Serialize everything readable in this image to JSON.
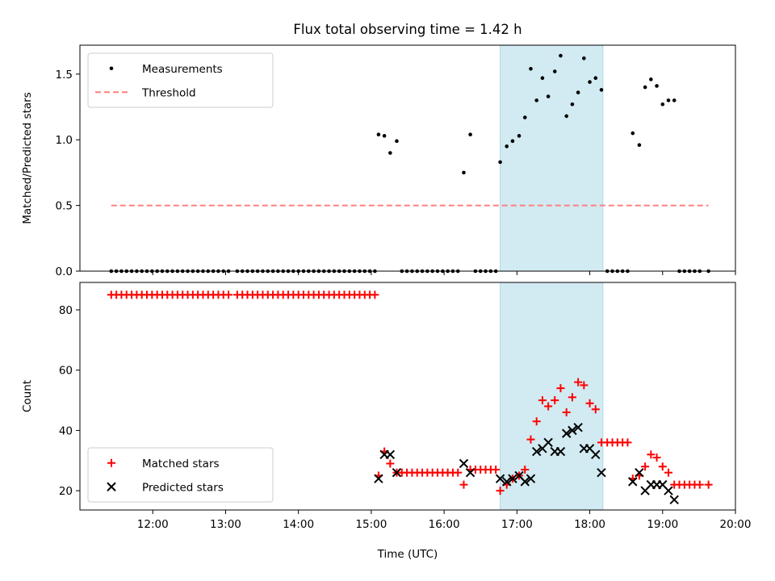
{
  "chart_data": [
    {
      "type": "scatter",
      "title": "Flux total observing time = 1.42 h",
      "xlabel": "",
      "ylabel": "Matched/Predicted stars",
      "x_unit": "hours UTC",
      "xlim": [
        11.0,
        20.0
      ],
      "ylim": [
        0.0,
        1.72
      ],
      "xticks": [
        12,
        13,
        14,
        15,
        16,
        17,
        18,
        19,
        20
      ],
      "xtick_labels": [
        "",
        "",
        "",
        "",
        "",
        "",
        "",
        "",
        ""
      ],
      "yticks": [
        0.0,
        0.5,
        1.0,
        1.5
      ],
      "ytick_labels": [
        "0.0",
        "0.5",
        "1.0",
        "1.5"
      ],
      "shaded_region": {
        "x0": 16.77,
        "x1": 18.18,
        "color": "#add8e6"
      },
      "legend": {
        "position": "upper left",
        "entries": [
          "Measurements",
          "Threshold"
        ]
      },
      "series": [
        {
          "name": "Measurements",
          "marker": "dot",
          "color": "#000000",
          "points": [
            [
              11.43,
              0
            ],
            [
              11.5,
              0
            ],
            [
              11.57,
              0
            ],
            [
              11.64,
              0
            ],
            [
              11.71,
              0
            ],
            [
              11.78,
              0
            ],
            [
              11.85,
              0
            ],
            [
              11.92,
              0
            ],
            [
              11.99,
              0
            ],
            [
              12.06,
              0
            ],
            [
              12.13,
              0
            ],
            [
              12.2,
              0
            ],
            [
              12.27,
              0
            ],
            [
              12.34,
              0
            ],
            [
              12.41,
              0
            ],
            [
              12.48,
              0
            ],
            [
              12.55,
              0
            ],
            [
              12.62,
              0
            ],
            [
              12.69,
              0
            ],
            [
              12.76,
              0
            ],
            [
              12.83,
              0
            ],
            [
              12.9,
              0
            ],
            [
              12.97,
              0
            ],
            [
              13.04,
              0
            ],
            [
              13.16,
              0
            ],
            [
              13.23,
              0
            ],
            [
              13.3,
              0
            ],
            [
              13.37,
              0
            ],
            [
              13.44,
              0
            ],
            [
              13.51,
              0
            ],
            [
              13.58,
              0
            ],
            [
              13.65,
              0
            ],
            [
              13.72,
              0
            ],
            [
              13.79,
              0
            ],
            [
              13.86,
              0
            ],
            [
              13.93,
              0
            ],
            [
              14.0,
              0
            ],
            [
              14.07,
              0
            ],
            [
              14.14,
              0
            ],
            [
              14.21,
              0
            ],
            [
              14.28,
              0
            ],
            [
              14.35,
              0
            ],
            [
              14.42,
              0
            ],
            [
              14.49,
              0
            ],
            [
              14.56,
              0
            ],
            [
              14.63,
              0
            ],
            [
              14.7,
              0
            ],
            [
              14.77,
              0
            ],
            [
              14.84,
              0
            ],
            [
              14.91,
              0
            ],
            [
              14.98,
              0
            ],
            [
              15.05,
              0
            ],
            [
              15.1,
              1.04
            ],
            [
              15.18,
              1.03
            ],
            [
              15.26,
              0.9
            ],
            [
              15.35,
              0.99
            ],
            [
              15.42,
              0
            ],
            [
              15.49,
              0
            ],
            [
              15.56,
              0
            ],
            [
              15.63,
              0
            ],
            [
              15.7,
              0
            ],
            [
              15.77,
              0
            ],
            [
              15.84,
              0
            ],
            [
              15.91,
              0
            ],
            [
              15.98,
              0
            ],
            [
              16.05,
              0
            ],
            [
              16.12,
              0
            ],
            [
              16.19,
              0
            ],
            [
              16.27,
              0.75
            ],
            [
              16.36,
              1.04
            ],
            [
              16.43,
              0
            ],
            [
              16.5,
              0
            ],
            [
              16.57,
              0
            ],
            [
              16.64,
              0
            ],
            [
              16.71,
              0
            ],
            [
              16.77,
              0.83
            ],
            [
              16.86,
              0.95
            ],
            [
              16.94,
              0.99
            ],
            [
              17.03,
              1.03
            ],
            [
              17.11,
              1.17
            ],
            [
              17.19,
              1.54
            ],
            [
              17.27,
              1.3
            ],
            [
              17.35,
              1.47
            ],
            [
              17.43,
              1.33
            ],
            [
              17.52,
              1.52
            ],
            [
              17.6,
              1.64
            ],
            [
              17.68,
              1.18
            ],
            [
              17.76,
              1.27
            ],
            [
              17.84,
              1.36
            ],
            [
              17.92,
              1.62
            ],
            [
              18.0,
              1.44
            ],
            [
              18.08,
              1.47
            ],
            [
              18.16,
              1.38
            ],
            [
              18.24,
              0
            ],
            [
              18.31,
              0
            ],
            [
              18.38,
              0
            ],
            [
              18.45,
              0
            ],
            [
              18.52,
              0
            ],
            [
              18.59,
              1.05
            ],
            [
              18.68,
              0.96
            ],
            [
              18.76,
              1.4
            ],
            [
              18.84,
              1.46
            ],
            [
              18.92,
              1.41
            ],
            [
              19.0,
              1.27
            ],
            [
              19.08,
              1.3
            ],
            [
              19.16,
              1.3
            ],
            [
              19.23,
              0
            ],
            [
              19.3,
              0
            ],
            [
              19.37,
              0
            ],
            [
              19.44,
              0
            ],
            [
              19.51,
              0
            ],
            [
              19.63,
              0
            ]
          ]
        },
        {
          "name": "Threshold",
          "marker": "dashed-line",
          "color": "#ff7f7f",
          "points": [
            [
              11.43,
              0.5
            ],
            [
              19.63,
              0.5
            ]
          ]
        }
      ]
    },
    {
      "type": "scatter",
      "title": "",
      "xlabel": "Time (UTC)",
      "ylabel": "Count",
      "x_unit": "hours UTC",
      "xlim": [
        11.0,
        20.0
      ],
      "ylim": [
        13.6,
        89.1
      ],
      "xticks": [
        12,
        13,
        14,
        15,
        16,
        17,
        18,
        19,
        20
      ],
      "xtick_labels": [
        "12:00",
        "13:00",
        "14:00",
        "15:00",
        "16:00",
        "17:00",
        "18:00",
        "19:00",
        "20:00"
      ],
      "yticks": [
        20,
        40,
        60,
        80
      ],
      "ytick_labels": [
        "20",
        "40",
        "60",
        "80"
      ],
      "shaded_region": {
        "x0": 16.77,
        "x1": 18.18,
        "color": "#add8e6"
      },
      "legend": {
        "position": "lower left",
        "entries": [
          "Matched stars",
          "Predicted stars"
        ]
      },
      "series": [
        {
          "name": "Matched stars",
          "marker": "plus",
          "color": "#ff0000",
          "points": [
            [
              11.43,
              85
            ],
            [
              11.5,
              85
            ],
            [
              11.57,
              85
            ],
            [
              11.64,
              85
            ],
            [
              11.71,
              85
            ],
            [
              11.78,
              85
            ],
            [
              11.85,
              85
            ],
            [
              11.92,
              85
            ],
            [
              11.99,
              85
            ],
            [
              12.06,
              85
            ],
            [
              12.13,
              85
            ],
            [
              12.2,
              85
            ],
            [
              12.27,
              85
            ],
            [
              12.34,
              85
            ],
            [
              12.41,
              85
            ],
            [
              12.48,
              85
            ],
            [
              12.55,
              85
            ],
            [
              12.62,
              85
            ],
            [
              12.69,
              85
            ],
            [
              12.76,
              85
            ],
            [
              12.83,
              85
            ],
            [
              12.9,
              85
            ],
            [
              12.97,
              85
            ],
            [
              13.04,
              85
            ],
            [
              13.16,
              85
            ],
            [
              13.23,
              85
            ],
            [
              13.3,
              85
            ],
            [
              13.37,
              85
            ],
            [
              13.44,
              85
            ],
            [
              13.51,
              85
            ],
            [
              13.58,
              85
            ],
            [
              13.65,
              85
            ],
            [
              13.72,
              85
            ],
            [
              13.79,
              85
            ],
            [
              13.86,
              85
            ],
            [
              13.93,
              85
            ],
            [
              14.0,
              85
            ],
            [
              14.07,
              85
            ],
            [
              14.14,
              85
            ],
            [
              14.21,
              85
            ],
            [
              14.28,
              85
            ],
            [
              14.35,
              85
            ],
            [
              14.42,
              85
            ],
            [
              14.49,
              85
            ],
            [
              14.56,
              85
            ],
            [
              14.63,
              85
            ],
            [
              14.7,
              85
            ],
            [
              14.77,
              85
            ],
            [
              14.84,
              85
            ],
            [
              14.91,
              85
            ],
            [
              14.98,
              85
            ],
            [
              15.05,
              85
            ],
            [
              15.1,
              25
            ],
            [
              15.18,
              33
            ],
            [
              15.26,
              29
            ],
            [
              15.35,
              26
            ],
            [
              15.42,
              26
            ],
            [
              15.49,
              26
            ],
            [
              15.56,
              26
            ],
            [
              15.63,
              26
            ],
            [
              15.7,
              26
            ],
            [
              15.77,
              26
            ],
            [
              15.84,
              26
            ],
            [
              15.91,
              26
            ],
            [
              15.98,
              26
            ],
            [
              16.05,
              26
            ],
            [
              16.12,
              26
            ],
            [
              16.19,
              26
            ],
            [
              16.27,
              22
            ],
            [
              16.36,
              27
            ],
            [
              16.43,
              27
            ],
            [
              16.5,
              27
            ],
            [
              16.57,
              27
            ],
            [
              16.64,
              27
            ],
            [
              16.71,
              27
            ],
            [
              16.77,
              20
            ],
            [
              16.86,
              22
            ],
            [
              16.94,
              24
            ],
            [
              17.03,
              25
            ],
            [
              17.11,
              27
            ],
            [
              17.19,
              37
            ],
            [
              17.27,
              43
            ],
            [
              17.35,
              50
            ],
            [
              17.43,
              48
            ],
            [
              17.52,
              50
            ],
            [
              17.6,
              54
            ],
            [
              17.68,
              46
            ],
            [
              17.76,
              51
            ],
            [
              17.84,
              56
            ],
            [
              17.92,
              55
            ],
            [
              18.0,
              49
            ],
            [
              18.08,
              47
            ],
            [
              18.16,
              36
            ],
            [
              18.24,
              36
            ],
            [
              18.31,
              36
            ],
            [
              18.38,
              36
            ],
            [
              18.45,
              36
            ],
            [
              18.52,
              36
            ],
            [
              18.59,
              24
            ],
            [
              18.68,
              25
            ],
            [
              18.76,
              28
            ],
            [
              18.84,
              32
            ],
            [
              18.92,
              31
            ],
            [
              19.0,
              28
            ],
            [
              19.08,
              26
            ],
            [
              19.16,
              22
            ],
            [
              19.23,
              22
            ],
            [
              19.3,
              22
            ],
            [
              19.37,
              22
            ],
            [
              19.44,
              22
            ],
            [
              19.51,
              22
            ],
            [
              19.63,
              22
            ]
          ]
        },
        {
          "name": "Predicted stars",
          "marker": "x",
          "color": "#000000",
          "points": [
            [
              15.1,
              24
            ],
            [
              15.18,
              32
            ],
            [
              15.26,
              32
            ],
            [
              15.35,
              26
            ],
            [
              16.27,
              29
            ],
            [
              16.36,
              26
            ],
            [
              16.77,
              24
            ],
            [
              16.86,
              23
            ],
            [
              16.94,
              24
            ],
            [
              17.03,
              25
            ],
            [
              17.11,
              23
            ],
            [
              17.19,
              24
            ],
            [
              17.27,
              33
            ],
            [
              17.35,
              34
            ],
            [
              17.43,
              36
            ],
            [
              17.52,
              33
            ],
            [
              17.6,
              33
            ],
            [
              17.68,
              39
            ],
            [
              17.76,
              40
            ],
            [
              17.84,
              41
            ],
            [
              17.92,
              34
            ],
            [
              18.0,
              34
            ],
            [
              18.08,
              32
            ],
            [
              18.16,
              26
            ],
            [
              18.59,
              23
            ],
            [
              18.68,
              26
            ],
            [
              18.76,
              20
            ],
            [
              18.84,
              22
            ],
            [
              18.92,
              22
            ],
            [
              19.0,
              22
            ],
            [
              19.08,
              20
            ],
            [
              19.16,
              17
            ]
          ]
        }
      ]
    }
  ]
}
